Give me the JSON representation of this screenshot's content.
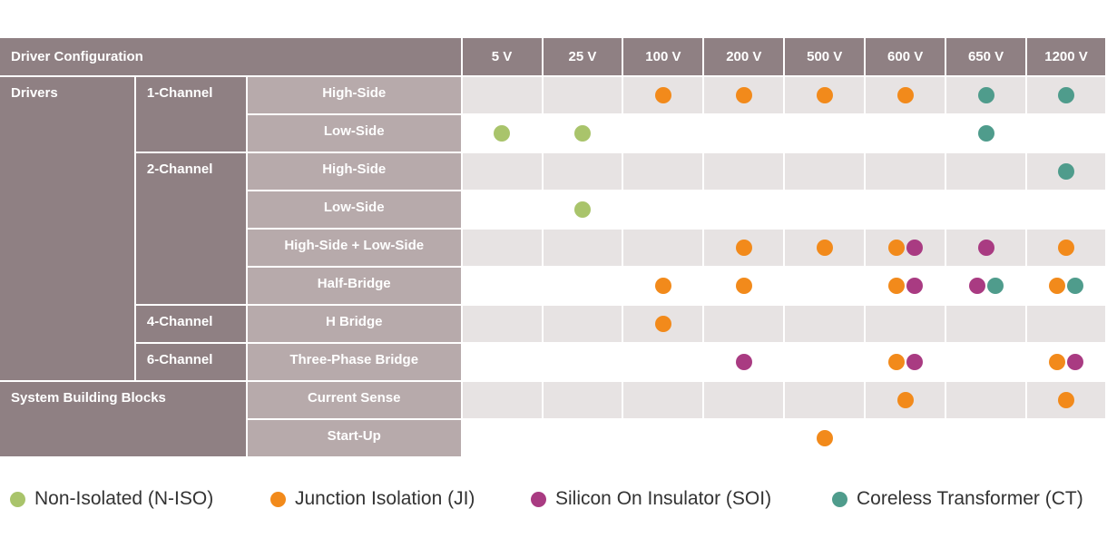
{
  "header": {
    "config_label": "Driver Configuration",
    "voltages": [
      "5 V",
      "25 V",
      "100 V",
      "200 V",
      "500 V",
      "600 V",
      "650 V",
      "1200 V"
    ]
  },
  "groups": {
    "drivers": "Drivers",
    "system": "System Building Blocks"
  },
  "channels": {
    "ch1": "1-Channel",
    "ch2": "2-Channel",
    "ch4": "4-Channel",
    "ch6": "6-Channel"
  },
  "rows": [
    {
      "label": "High-Side",
      "cells": [
        [],
        [],
        [
          "ji"
        ],
        [
          "ji"
        ],
        [
          "ji"
        ],
        [
          "ji"
        ],
        [
          "ct"
        ],
        [
          "ct"
        ]
      ]
    },
    {
      "label": "Low-Side",
      "cells": [
        [
          "niso"
        ],
        [
          "niso"
        ],
        [],
        [],
        [],
        [],
        [
          "ct"
        ],
        []
      ]
    },
    {
      "label": "High-Side",
      "cells": [
        [],
        [],
        [],
        [],
        [],
        [],
        [],
        [
          "ct"
        ]
      ]
    },
    {
      "label": "Low-Side",
      "cells": [
        [],
        [
          "niso"
        ],
        [],
        [],
        [],
        [],
        [],
        []
      ]
    },
    {
      "label": "High-Side + Low-Side",
      "cells": [
        [],
        [],
        [],
        [
          "ji"
        ],
        [
          "ji"
        ],
        [
          "ji",
          "soi"
        ],
        [
          "soi"
        ],
        [
          "ji"
        ]
      ]
    },
    {
      "label": "Half-Bridge",
      "cells": [
        [],
        [],
        [
          "ji"
        ],
        [
          "ji"
        ],
        [],
        [
          "ji",
          "soi"
        ],
        [
          "soi",
          "ct"
        ],
        [
          "ji",
          "ct"
        ]
      ]
    },
    {
      "label": "H Bridge",
      "cells": [
        [],
        [],
        [
          "ji"
        ],
        [],
        [],
        [],
        [],
        []
      ]
    },
    {
      "label": "Three-Phase Bridge",
      "cells": [
        [],
        [],
        [],
        [
          "soi"
        ],
        [],
        [
          "ji",
          "soi"
        ],
        [],
        [
          "ji",
          "soi"
        ]
      ]
    },
    {
      "label": "Current Sense",
      "cells": [
        [],
        [],
        [],
        [],
        [],
        [
          "ji"
        ],
        [],
        [
          "ji"
        ]
      ]
    },
    {
      "label": "Start-Up",
      "cells": [
        [],
        [],
        [],
        [],
        [
          "ji"
        ],
        [],
        [],
        []
      ]
    }
  ],
  "legend": [
    {
      "key": "niso",
      "label": "Non-Isolated (N-ISO)",
      "color": "#a9c46b"
    },
    {
      "key": "ji",
      "label": "Junction Isolation (JI)",
      "color": "#f28a1b"
    },
    {
      "key": "soi",
      "label": "Silicon On Insulator (SOI)",
      "color": "#a93b82"
    },
    {
      "key": "ct",
      "label": "Coreless Transformer (CT)",
      "color": "#4f9c8c"
    }
  ]
}
